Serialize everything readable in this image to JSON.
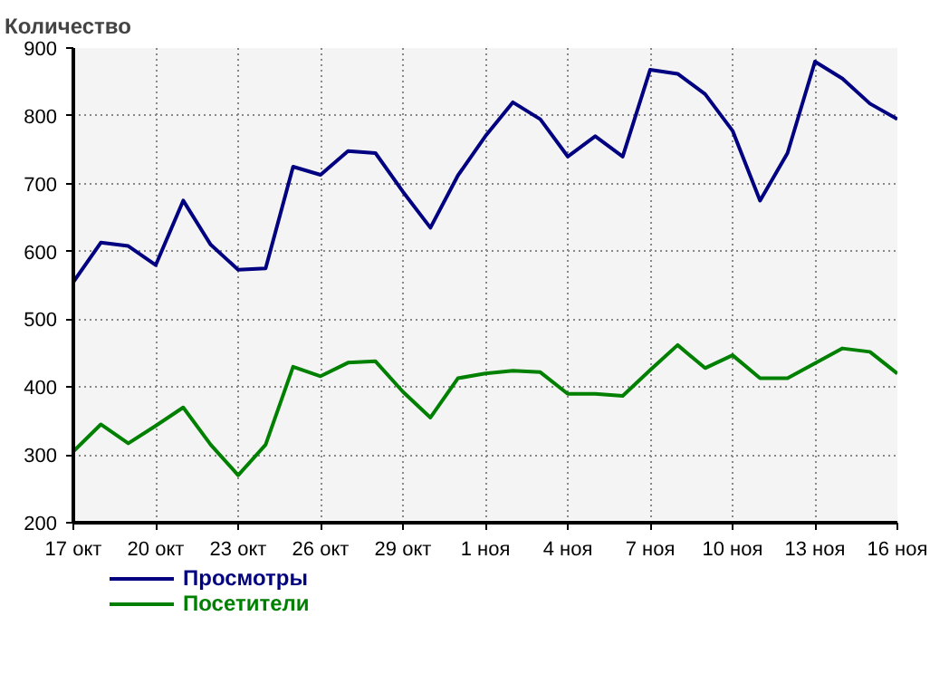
{
  "chart_data": {
    "type": "line",
    "ylabel": "Количество",
    "categories": [
      "17 окт",
      null,
      null,
      "20 окт",
      null,
      null,
      "23 окт",
      null,
      null,
      "26 окт",
      null,
      null,
      "29 окт",
      null,
      null,
      "1 ноя",
      null,
      null,
      "4 ноя",
      null,
      null,
      "7 ноя",
      null,
      null,
      "10 ноя",
      null,
      null,
      "13 ноя",
      null,
      null,
      "16 ноя"
    ],
    "series": [
      {
        "name": "Просмотры",
        "color": "#000080",
        "values": [
          555,
          613,
          608,
          580,
          675,
          610,
          573,
          575,
          725,
          713,
          748,
          745,
          688,
          635,
          712,
          770,
          820,
          795,
          740,
          770,
          740,
          868,
          862,
          832,
          778,
          675,
          745,
          880,
          855,
          818,
          795
        ]
      },
      {
        "name": "Посетители",
        "color": "#008000",
        "values": [
          305,
          345,
          317,
          343,
          370,
          315,
          270,
          315,
          430,
          416,
          436,
          438,
          393,
          355,
          413,
          420,
          424,
          422,
          390,
          390,
          387,
          425,
          462,
          428,
          447,
          413,
          413,
          435,
          457,
          452,
          420
        ]
      }
    ],
    "ylim": [
      200,
      900
    ],
    "yticks": [
      200,
      300,
      400,
      500,
      600,
      700,
      800,
      900
    ],
    "grid": true,
    "legend": "bottom",
    "marker": "none",
    "line_style": "solid"
  }
}
